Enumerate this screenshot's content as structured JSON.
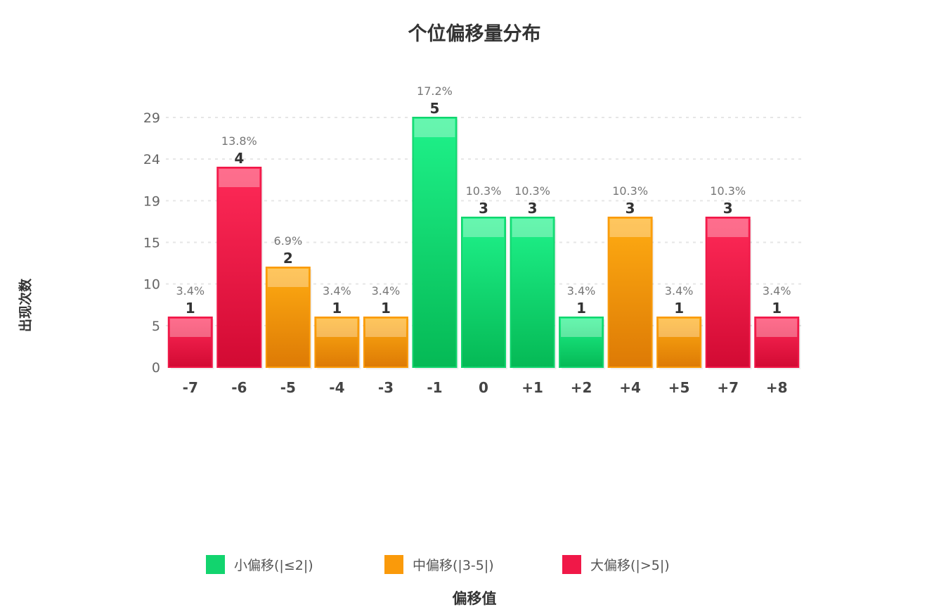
{
  "chart_data": {
    "type": "bar",
    "title": "个位偏移量分布",
    "xlabel": "偏移值",
    "ylabel": "出现次数",
    "categories": [
      "-7",
      "-6",
      "-5",
      "-4",
      "-3",
      "-1",
      "0",
      "+1",
      "+2",
      "+4",
      "+5",
      "+7",
      "+8"
    ],
    "values": [
      1,
      4,
      2,
      1,
      1,
      5,
      3,
      3,
      1,
      3,
      1,
      3,
      1
    ],
    "percent_labels": [
      "3.4%",
      "13.8%",
      "6.9%",
      "3.4%",
      "3.4%",
      "17.2%",
      "10.3%",
      "10.3%",
      "3.4%",
      "10.3%",
      "3.4%",
      "10.3%",
      "3.4%"
    ],
    "groups": [
      "large",
      "large",
      "medium",
      "medium",
      "medium",
      "small",
      "small",
      "small",
      "small",
      "medium",
      "medium",
      "large",
      "large"
    ],
    "y_tick_labels": [
      "0",
      "5",
      "10",
      "15",
      "19",
      "24",
      "29"
    ],
    "ylim": [
      0,
      5
    ],
    "grid": true,
    "legend_position": "bottom",
    "legend": [
      {
        "key": "small",
        "label": "小偏移(|≤2|)",
        "color": "#12d46e"
      },
      {
        "key": "medium",
        "label": "中偏移(|3-5|)",
        "color": "#fa9a0a"
      },
      {
        "key": "large",
        "label": "大偏移(|>5|)",
        "color": "#f01848"
      }
    ]
  }
}
